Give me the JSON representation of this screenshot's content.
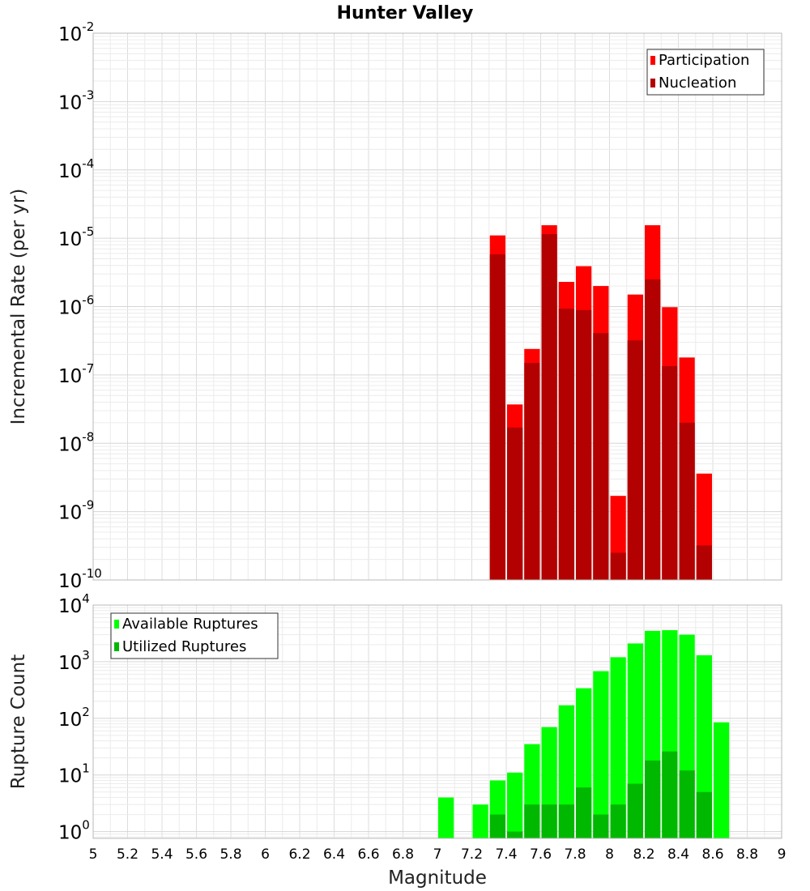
{
  "chart_data": [
    {
      "type": "bar",
      "panel": "top",
      "title": "Hunter Valley",
      "xlabel": "Magnitude",
      "ylabel": "Incremental Rate (per yr)",
      "yscale": "log",
      "ylim_exp": [
        -10,
        -2
      ],
      "y_ticks": [
        {
          "base": "10",
          "exp": "-2"
        },
        {
          "base": "10",
          "exp": "-3"
        },
        {
          "base": "10",
          "exp": "-4"
        },
        {
          "base": "10",
          "exp": "-5"
        },
        {
          "base": "10",
          "exp": "-6"
        },
        {
          "base": "10",
          "exp": "-7"
        },
        {
          "base": "10",
          "exp": "-8"
        },
        {
          "base": "10",
          "exp": "-9"
        },
        {
          "base": "10",
          "exp": "-10"
        }
      ],
      "xlim": [
        5,
        9
      ],
      "bin_width": 0.1,
      "grid": true,
      "legend_position": "top-right",
      "series": [
        {
          "name": "Participation",
          "color": "#ff0000",
          "points": [
            [
              7.35,
              1.1e-05
            ],
            [
              7.45,
              3.7e-08
            ],
            [
              7.55,
              2.4e-07
            ],
            [
              7.65,
              1.55e-05
            ],
            [
              7.75,
              2.3e-06
            ],
            [
              7.85,
              3.9e-06
            ],
            [
              7.95,
              2e-06
            ],
            [
              8.05,
              1.7e-09
            ],
            [
              8.15,
              1.5e-06
            ],
            [
              8.25,
              1.55e-05
            ],
            [
              8.35,
              9.8e-07
            ],
            [
              8.45,
              1.8e-07
            ],
            [
              8.55,
              3.6e-09
            ]
          ]
        },
        {
          "name": "Nucleation",
          "color": "#b30000",
          "points": [
            [
              7.35,
              5.8e-06
            ],
            [
              7.45,
              1.7e-08
            ],
            [
              7.55,
              1.5e-07
            ],
            [
              7.65,
              1.15e-05
            ],
            [
              7.75,
              9.3e-07
            ],
            [
              7.85,
              8.9e-07
            ],
            [
              7.95,
              4.1e-07
            ],
            [
              8.05,
              2.5e-10
            ],
            [
              8.15,
              3.2e-07
            ],
            [
              8.25,
              2.5e-06
            ],
            [
              8.35,
              1.35e-07
            ],
            [
              8.45,
              2e-08
            ],
            [
              8.55,
              3.2e-10
            ]
          ]
        }
      ]
    },
    {
      "type": "bar",
      "panel": "bottom",
      "xlabel": "Magnitude",
      "ylabel": "Rupture Count",
      "yscale": "log",
      "ylim_exp": [
        -0.12,
        4
      ],
      "y_ticks": [
        {
          "base": "10",
          "exp": "4"
        },
        {
          "base": "10",
          "exp": "3"
        },
        {
          "base": "10",
          "exp": "2"
        },
        {
          "base": "10",
          "exp": "1"
        },
        {
          "base": "10",
          "exp": "0"
        }
      ],
      "xlim": [
        5,
        9
      ],
      "x_ticks": [
        "5",
        "5.2",
        "5.4",
        "5.6",
        "5.8",
        "6",
        "6.2",
        "6.4",
        "6.6",
        "6.8",
        "7",
        "7.2",
        "7.4",
        "7.6",
        "7.8",
        "8",
        "8.2",
        "8.4",
        "8.6",
        "8.8",
        "9"
      ],
      "bin_width": 0.1,
      "grid": true,
      "legend_position": "top-left",
      "series": [
        {
          "name": "Available Ruptures",
          "color": "#00ff00",
          "points": [
            [
              7.05,
              4
            ],
            [
              7.25,
              3
            ],
            [
              7.35,
              8
            ],
            [
              7.45,
              11
            ],
            [
              7.55,
              35
            ],
            [
              7.65,
              70
            ],
            [
              7.75,
              170
            ],
            [
              7.85,
              340
            ],
            [
              7.95,
              680
            ],
            [
              8.05,
              1200
            ],
            [
              8.15,
              2100
            ],
            [
              8.25,
              3500
            ],
            [
              8.35,
              3600
            ],
            [
              8.45,
              3000
            ],
            [
              8.55,
              1300
            ],
            [
              8.65,
              85
            ]
          ]
        },
        {
          "name": "Utilized Ruptures",
          "color": "#00b800",
          "points": [
            [
              7.35,
              2
            ],
            [
              7.45,
              1
            ],
            [
              7.55,
              3
            ],
            [
              7.65,
              3
            ],
            [
              7.75,
              3
            ],
            [
              7.85,
              6
            ],
            [
              7.95,
              2
            ],
            [
              8.05,
              3
            ],
            [
              8.15,
              7
            ],
            [
              8.25,
              18
            ],
            [
              8.35,
              26
            ],
            [
              8.45,
              12
            ],
            [
              8.55,
              5
            ]
          ]
        }
      ]
    }
  ]
}
